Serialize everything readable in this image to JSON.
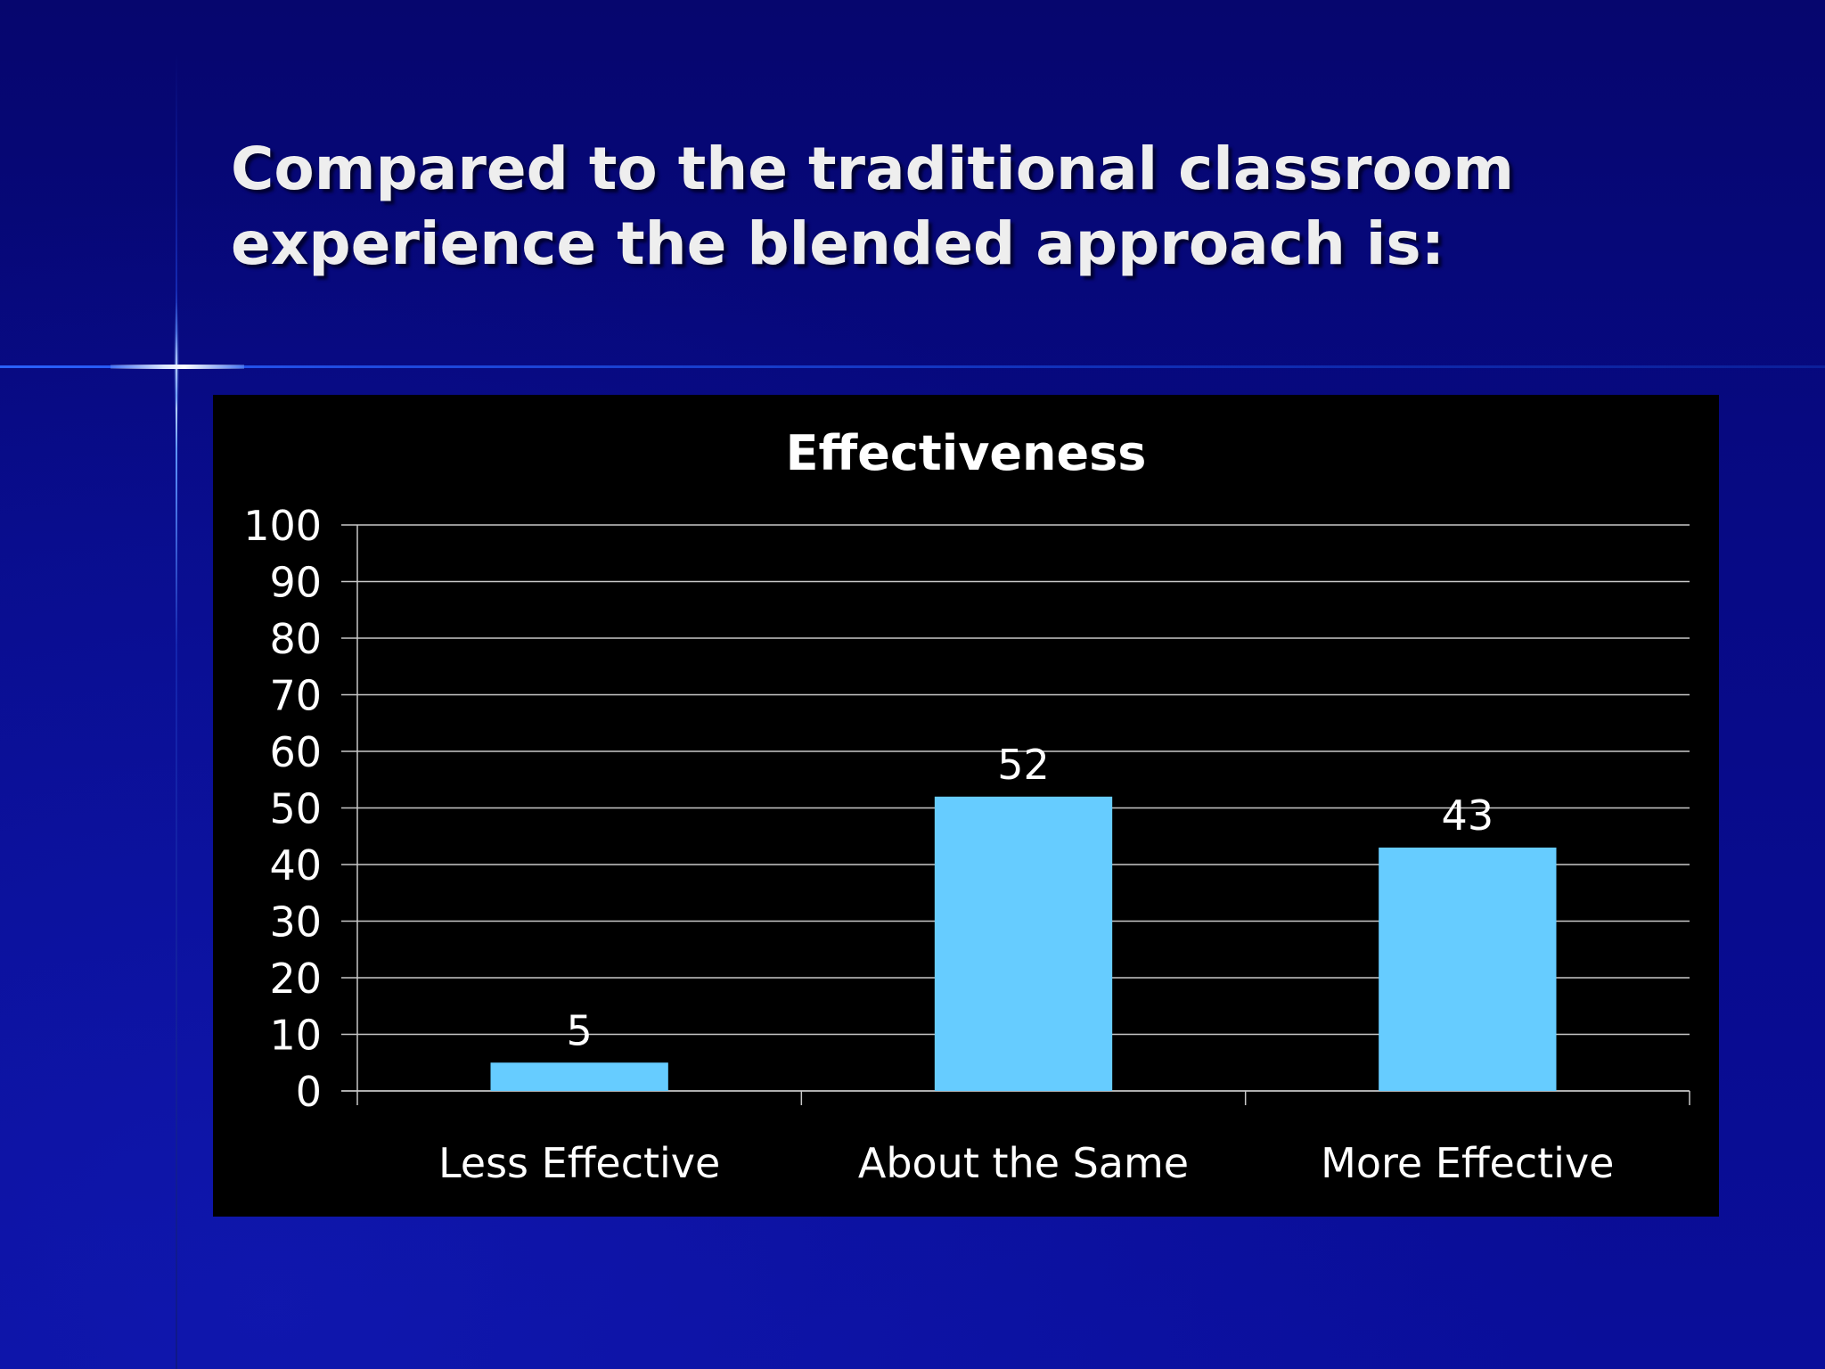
{
  "slide": {
    "title_line1": "Compared to the traditional classroom",
    "title_line2": "experience the blended approach is:"
  },
  "colors": {
    "background": "#07087f",
    "bar": "#66ccff",
    "chart_background": "#000000",
    "text": "#ffffff",
    "gridline": "#c8c8c8"
  },
  "chart_data": {
    "type": "bar",
    "title": "Effectiveness",
    "categories": [
      "Less Effective",
      "About the Same",
      "More Effective"
    ],
    "values": [
      5,
      52,
      43
    ],
    "data_labels": [
      "5",
      "52",
      "43"
    ],
    "ylim": [
      0,
      100
    ],
    "yticks": [
      0,
      10,
      20,
      30,
      40,
      50,
      60,
      70,
      80,
      90,
      100
    ],
    "grid": true,
    "legend": "none"
  }
}
